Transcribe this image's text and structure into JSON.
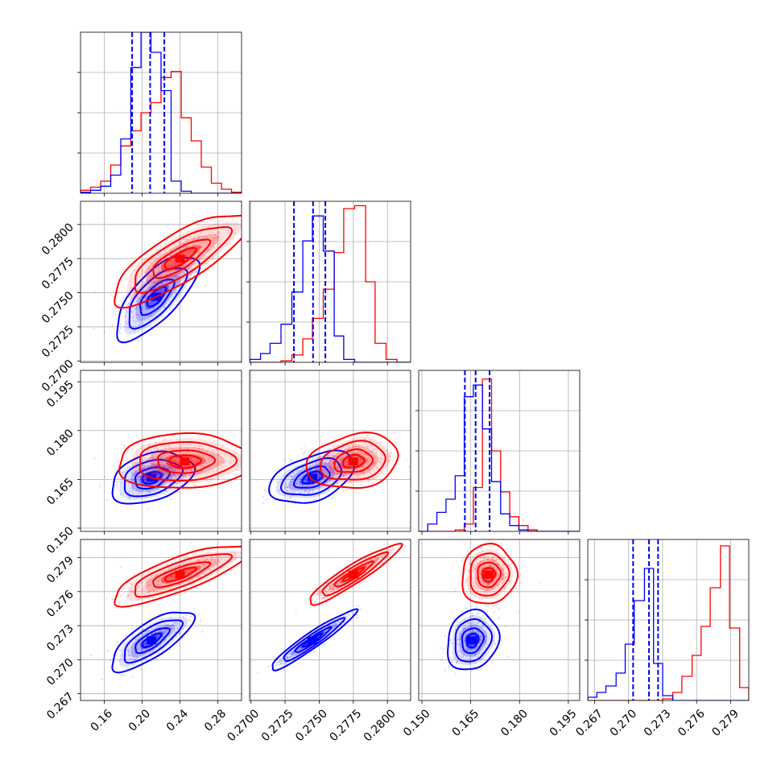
{
  "chart_data": {
    "type": "corner",
    "grid": true,
    "series": [
      {
        "color": "#0000ff"
      },
      {
        "color": "#ff0000"
      }
    ],
    "parameters": [
      {
        "axis_ticks": [
          "0.16",
          "0.20",
          "0.24",
          "0.28"
        ],
        "range": [
          0.135,
          0.305
        ]
      },
      {
        "axis_ticks": [
          "0.2700",
          "0.2725",
          "0.2750",
          "0.2775",
          "0.2800"
        ],
        "range": [
          0.2699,
          0.2817
        ]
      },
      {
        "axis_ticks": [
          "0.150",
          "0.165",
          "0.180",
          "0.195"
        ],
        "range": [
          0.149,
          0.1985
        ]
      },
      {
        "axis_ticks": [
          "0.267",
          "0.270",
          "0.273",
          "0.276",
          "0.279"
        ],
        "range": [
          0.2664,
          0.2806
        ]
      }
    ],
    "marginals": [
      {
        "param": 0,
        "blue": {
          "bin_edges": [
            0.135,
            0.1456,
            0.1563,
            0.1669,
            0.1775,
            0.1881,
            0.1988,
            0.2094,
            0.22,
            0.2306,
            0.2413,
            0.2519,
            0.2625,
            0.2731,
            0.2838,
            0.2944,
            0.305
          ],
          "counts": [
            0.01,
            0.03,
            0.07,
            0.18,
            0.54,
            1.25,
            1.6,
            1.4,
            1.02,
            0.12,
            0.02,
            0,
            0,
            0,
            0,
            0
          ],
          "quantiles": [
            0.1895,
            0.2085,
            0.2235
          ]
        },
        "red": {
          "bin_edges": [
            0.135,
            0.1456,
            0.1563,
            0.1669,
            0.1775,
            0.1881,
            0.1988,
            0.2094,
            0.22,
            0.2306,
            0.2413,
            0.2519,
            0.2625,
            0.2731,
            0.2838,
            0.2944,
            0.305
          ],
          "counts": [
            0.03,
            0.06,
            0.12,
            0.28,
            0.47,
            0.62,
            0.8,
            0.9,
            1.15,
            1.21,
            0.75,
            0.52,
            0.26,
            0.1,
            0.04,
            0.01
          ],
          "ymax": 1.6
        }
      },
      {
        "param": 1,
        "blue": {
          "bin_edges": [
            0.2699,
            0.2707,
            0.2714,
            0.2722,
            0.273,
            0.2738,
            0.2745,
            0.2753,
            0.2761,
            0.2768,
            0.2776,
            0.2784,
            0.2791,
            0.2799,
            0.2807,
            0.2817
          ],
          "counts": [
            0.02,
            0.06,
            0.13,
            0.26,
            0.48,
            0.83,
            1.0,
            0.76,
            0.18,
            0.02,
            0,
            0,
            0,
            0,
            0
          ],
          "quantiles": [
            0.27315,
            0.27455,
            0.27545
          ]
        },
        "red": {
          "bin_edges": [
            0.2699,
            0.2707,
            0.2714,
            0.2722,
            0.273,
            0.2738,
            0.2745,
            0.2753,
            0.2761,
            0.2768,
            0.2776,
            0.2784,
            0.2791,
            0.2799,
            0.2807,
            0.2817
          ],
          "counts": [
            0,
            0,
            0,
            0.01,
            0.05,
            0.16,
            0.3,
            0.5,
            0.75,
            1.05,
            1.07,
            0.55,
            0.13,
            0.02,
            0
          ],
          "ymax": 1.1
        }
      },
      {
        "param": 2,
        "blue": {
          "bin_edges": [
            0.149,
            0.1518,
            0.1546,
            0.1574,
            0.1602,
            0.163,
            0.1658,
            0.1686,
            0.1714,
            0.1742,
            0.177,
            0.1798,
            0.1826,
            0.1854,
            0.1882,
            0.191,
            0.1938,
            0.1966,
            0.1985
          ],
          "counts": [
            0,
            0.05,
            0.13,
            0.22,
            0.38,
            0.92,
            1.0,
            0.7,
            0.34,
            0.12,
            0.04,
            0.01,
            0,
            0,
            0,
            0,
            0,
            0
          ],
          "quantiles": [
            0.1632,
            0.1665,
            0.1708
          ]
        },
        "red": {
          "bin_edges": [
            0.149,
            0.1518,
            0.1546,
            0.1574,
            0.1602,
            0.163,
            0.1658,
            0.1686,
            0.1714,
            0.1742,
            0.177,
            0.1798,
            0.1826,
            0.1854,
            0.1882,
            0.191,
            0.1938,
            0.1966,
            0.1985
          ],
          "counts": [
            0,
            0,
            0,
            0,
            0.01,
            0.05,
            0.3,
            1.04,
            0.55,
            0.27,
            0.1,
            0.04,
            0.01,
            0,
            0,
            0,
            0,
            0
          ],
          "ymax": 1.1
        }
      },
      {
        "param": 3,
        "blue": {
          "bin_edges": [
            0.2664,
            0.2672,
            0.268,
            0.2689,
            0.2697,
            0.2705,
            0.2714,
            0.2722,
            0.273,
            0.2739,
            0.2747,
            0.2756,
            0.2764,
            0.2772,
            0.2781,
            0.2789,
            0.2798,
            0.2806
          ],
          "counts": [
            0.02,
            0.05,
            0.09,
            0.17,
            0.35,
            0.62,
            0.82,
            0.23,
            0.03,
            0,
            0,
            0,
            0,
            0,
            0,
            0,
            0
          ],
          "quantiles": [
            0.2704,
            0.2718,
            0.2726
          ]
        },
        "red": {
          "bin_edges": [
            0.2664,
            0.2672,
            0.268,
            0.2689,
            0.2697,
            0.2705,
            0.2714,
            0.2722,
            0.273,
            0.2739,
            0.2747,
            0.2756,
            0.2764,
            0.2772,
            0.2781,
            0.2789,
            0.2798,
            0.2806
          ],
          "counts": [
            0,
            0,
            0,
            0,
            0,
            0,
            0,
            0,
            0.01,
            0.05,
            0.15,
            0.28,
            0.46,
            0.7,
            0.96,
            0.45,
            0.08
          ],
          "ymax": 1.0
        }
      }
    ],
    "pairs": [
      {
        "x_param": 0,
        "y_param": 1,
        "blue": {
          "mean": [
            0.215,
            0.2747
          ],
          "sd": [
            0.018,
            0.0013
          ],
          "corr": 0.72
        },
        "red": {
          "mean": [
            0.24,
            0.2775
          ],
          "sd": [
            0.03,
            0.0014
          ],
          "corr": 0.8
        }
      },
      {
        "x_param": 0,
        "y_param": 2,
        "blue": {
          "mean": [
            0.21,
            0.1655
          ],
          "sd": [
            0.018,
            0.0033
          ],
          "corr": 0.35
        },
        "red": {
          "mean": [
            0.245,
            0.1705
          ],
          "sd": [
            0.03,
            0.0035
          ],
          "corr": 0.05
        }
      },
      {
        "x_param": 1,
        "y_param": 2,
        "blue": {
          "mean": [
            0.2745,
            0.1655
          ],
          "sd": [
            0.0013,
            0.0033
          ],
          "corr": 0.45
        },
        "red": {
          "mean": [
            0.2775,
            0.1705
          ],
          "sd": [
            0.0014,
            0.0035
          ],
          "corr": 0.2
        }
      },
      {
        "x_param": 0,
        "y_param": 3,
        "blue": {
          "mean": [
            0.21,
            0.2717
          ],
          "sd": [
            0.018,
            0.0011
          ],
          "corr": 0.75
        },
        "red": {
          "mean": [
            0.24,
            0.2775
          ],
          "sd": [
            0.03,
            0.0011
          ],
          "corr": 0.8
        }
      },
      {
        "x_param": 1,
        "y_param": 3,
        "blue": {
          "mean": [
            0.2745,
            0.2717
          ],
          "sd": [
            0.0013,
            0.0011
          ],
          "corr": 0.95
        },
        "red": {
          "mean": [
            0.2775,
            0.2775
          ],
          "sd": [
            0.0014,
            0.0011
          ],
          "corr": 0.93
        }
      },
      {
        "x_param": 2,
        "y_param": 3,
        "blue": {
          "mean": [
            0.1655,
            0.2717
          ],
          "sd": [
            0.0033,
            0.0011
          ],
          "corr": 0.15
        },
        "red": {
          "mean": [
            0.1705,
            0.2775
          ],
          "sd": [
            0.0035,
            0.0011
          ],
          "corr": 0.05
        }
      }
    ]
  }
}
